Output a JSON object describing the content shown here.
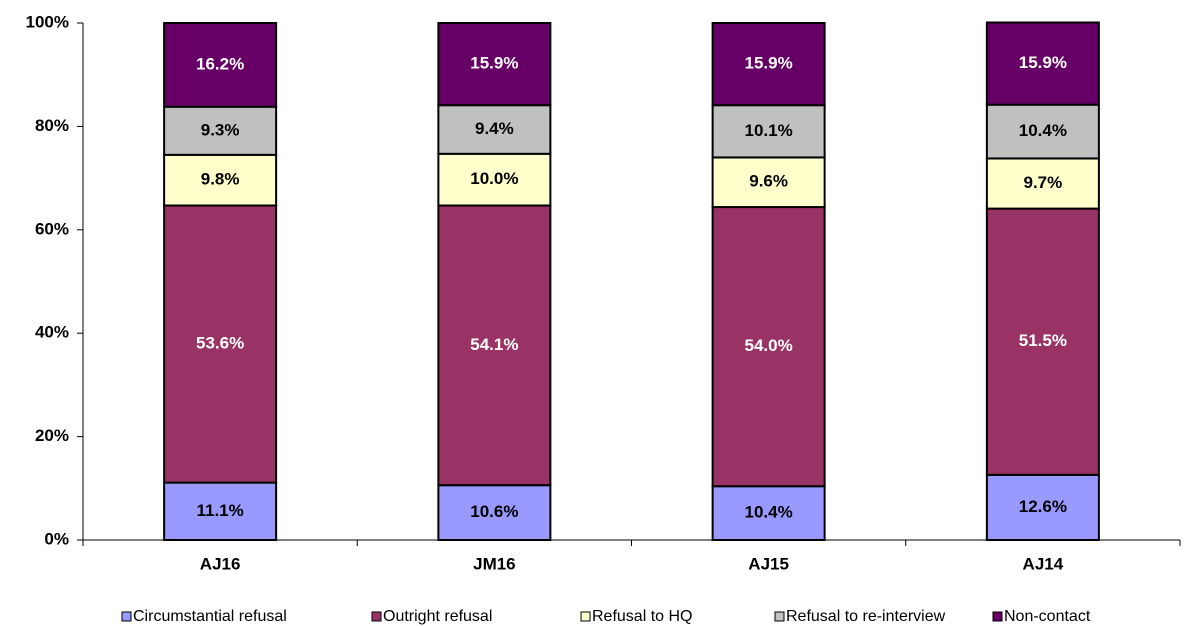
{
  "chart_data": {
    "type": "stacked_bar",
    "categories": [
      "AJ16",
      "JM16",
      "AJ15",
      "AJ14"
    ],
    "series": [
      {
        "name": "Circumstantial refusal",
        "color": "#9999ff",
        "values": [
          11.1,
          10.6,
          10.4,
          12.6
        ],
        "value_labels": [
          "11.1%",
          "10.6%",
          "10.4%",
          "12.6%"
        ]
      },
      {
        "name": "Outright refusal",
        "color": "#993366",
        "values": [
          53.6,
          54.1,
          54.0,
          51.5
        ],
        "value_labels": [
          "53.6%",
          "54.1%",
          "54.0%",
          "51.5%"
        ]
      },
      {
        "name": "Refusal to HQ",
        "color": "#ffffcc",
        "values": [
          9.8,
          10.0,
          9.6,
          9.7
        ],
        "value_labels": [
          "9.8%",
          "10.0%",
          "9.6%",
          "9.7%"
        ]
      },
      {
        "name": "Refusal to re-interview",
        "color": "#c0c0c0",
        "values": [
          9.3,
          9.4,
          10.1,
          10.4
        ],
        "value_labels": [
          "9.3%",
          "9.4%",
          "10.1%",
          "10.4%"
        ]
      },
      {
        "name": "Non-contact",
        "color": "#660066",
        "values": [
          16.2,
          15.9,
          15.9,
          15.9
        ],
        "value_labels": [
          "16.2%",
          "15.9%",
          "15.9%",
          "15.9%"
        ]
      }
    ],
    "ylim": [
      0,
      100
    ],
    "yticks": [
      {
        "value": 0,
        "label": "0%"
      },
      {
        "value": 20,
        "label": "20%"
      },
      {
        "value": 40,
        "label": "40%"
      },
      {
        "value": 60,
        "label": "60%"
      },
      {
        "value": 80,
        "label": "80%"
      },
      {
        "value": 100,
        "label": "100%"
      }
    ],
    "grid": false,
    "legend": "bottom"
  }
}
